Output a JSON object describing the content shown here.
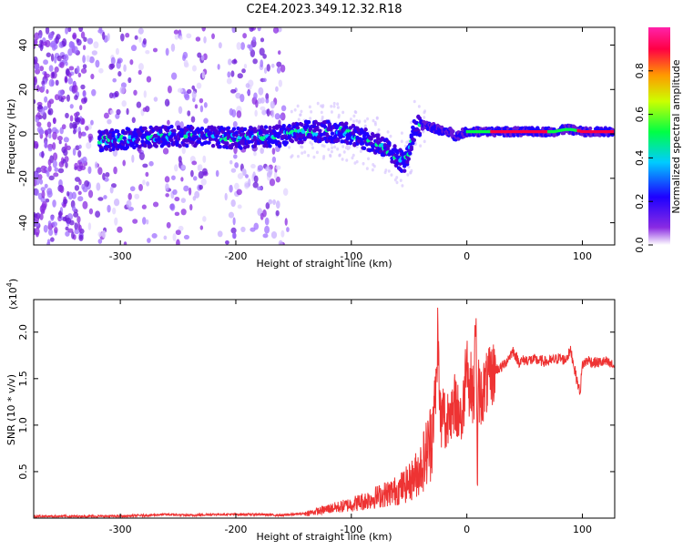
{
  "figure": {
    "title": "C2E4.2023.349.12.32.R18"
  },
  "chart_data": [
    {
      "type": "heatmap",
      "xlabel": "Height of straight line (km)",
      "ylabel": "Frequency (Hz)",
      "xlim": [
        -375,
        128
      ],
      "ylim": [
        -50,
        48
      ],
      "x_ticks": [
        -300,
        -200,
        -100,
        0,
        100
      ],
      "y_ticks": [
        -40,
        -20,
        0,
        20,
        40
      ],
      "x_tick_labels": [
        "-300",
        "-200",
        "-100",
        "0",
        "100"
      ],
      "y_tick_labels": [
        "-40",
        "-20",
        "0",
        "20",
        "40"
      ],
      "colorbar": {
        "label": "Normalized spectral amplitude",
        "range": [
          0,
          1
        ],
        "ticks": [
          0,
          0.2,
          0.4,
          0.6,
          0.8
        ],
        "tick_labels": [
          "0.0",
          "0.2",
          "0.4",
          "0.6",
          "0.8"
        ],
        "colors": [
          "#ffffff",
          "#8a2be2",
          "#1e00ff",
          "#00ccff",
          "#00ff44",
          "#ccff00",
          "#ff9900",
          "#ff0044",
          "#ff22aa"
        ]
      },
      "ridge": {
        "x": [
          -315,
          -290,
          -260,
          -230,
          -200,
          -170,
          -160,
          -150,
          -140,
          -125,
          -110,
          -100,
          -95,
          -85,
          -75,
          -65,
          -55,
          -50,
          -45,
          -40,
          -35,
          -30,
          -25,
          -20,
          -15,
          -10,
          -5,
          0,
          10,
          20,
          40,
          60,
          75,
          85,
          90,
          100,
          110,
          120,
          125
        ],
        "y": [
          -3,
          -2,
          -1,
          -1,
          -2,
          -1,
          -1,
          0,
          1,
          1,
          1,
          0,
          -1,
          -3,
          -5,
          -8,
          -13,
          -9,
          3,
          4,
          4,
          3,
          2,
          1,
          1,
          -1,
          0,
          1,
          1,
          1,
          1,
          1,
          1,
          2,
          2,
          1,
          1,
          1,
          1
        ]
      },
      "grid": false
    },
    {
      "type": "line",
      "xlabel": "Height of straight line (km)",
      "ylabel": "SNR (10 * v/v)",
      "y_multiplier_label": "(x10",
      "y_multiplier_exp": "4",
      "xlim": [
        -375,
        128
      ],
      "ylim": [
        0,
        2.35
      ],
      "x_ticks": [
        -300,
        -200,
        -100,
        0,
        100
      ],
      "y_ticks": [
        0.5,
        1.0,
        1.5,
        2.0
      ],
      "x_tick_labels": [
        "-300",
        "-200",
        "-100",
        "0",
        "100"
      ],
      "y_tick_labels": [
        "0.5",
        "1.0",
        "1.5",
        "2.0"
      ],
      "series": [
        {
          "color": "#ee3333",
          "x": [
            -375,
            -340,
            -300,
            -280,
            -260,
            -240,
            -220,
            -200,
            -180,
            -160,
            -150,
            -140,
            -130,
            -120,
            -110,
            -100,
            -90,
            -80,
            -70,
            -60,
            -55,
            -50,
            -45,
            -40,
            -35,
            -32,
            -30,
            -28,
            -26,
            -25,
            -24,
            -22,
            -20,
            -18,
            -15,
            -12,
            -10,
            -8,
            -6,
            -4,
            -2,
            0,
            2,
            4,
            6,
            8,
            9,
            10,
            12,
            15,
            20,
            25,
            30,
            35,
            40,
            45,
            50,
            60,
            70,
            80,
            85,
            90,
            95,
            98,
            100,
            105,
            110,
            120,
            128
          ],
          "y": [
            0.02,
            0.02,
            0.02,
            0.03,
            0.04,
            0.03,
            0.04,
            0.04,
            0.04,
            0.03,
            0.04,
            0.05,
            0.07,
            0.1,
            0.12,
            0.15,
            0.18,
            0.22,
            0.26,
            0.3,
            0.34,
            0.38,
            0.45,
            0.55,
            0.7,
            0.8,
            1.0,
            1.2,
            1.5,
            2.2,
            1.3,
            1.0,
            1.2,
            0.9,
            1.3,
            1.0,
            1.3,
            1.1,
            1.2,
            1.0,
            1.4,
            1.9,
            1.3,
            1.5,
            1.2,
            2.4,
            0.3,
            1.4,
            1.3,
            1.4,
            1.5,
            1.6,
            1.62,
            1.7,
            1.8,
            1.68,
            1.7,
            1.7,
            1.68,
            1.72,
            1.7,
            1.8,
            1.5,
            1.35,
            1.65,
            1.7,
            1.67,
            1.68,
            1.63
          ]
        }
      ],
      "grid": false
    }
  ]
}
